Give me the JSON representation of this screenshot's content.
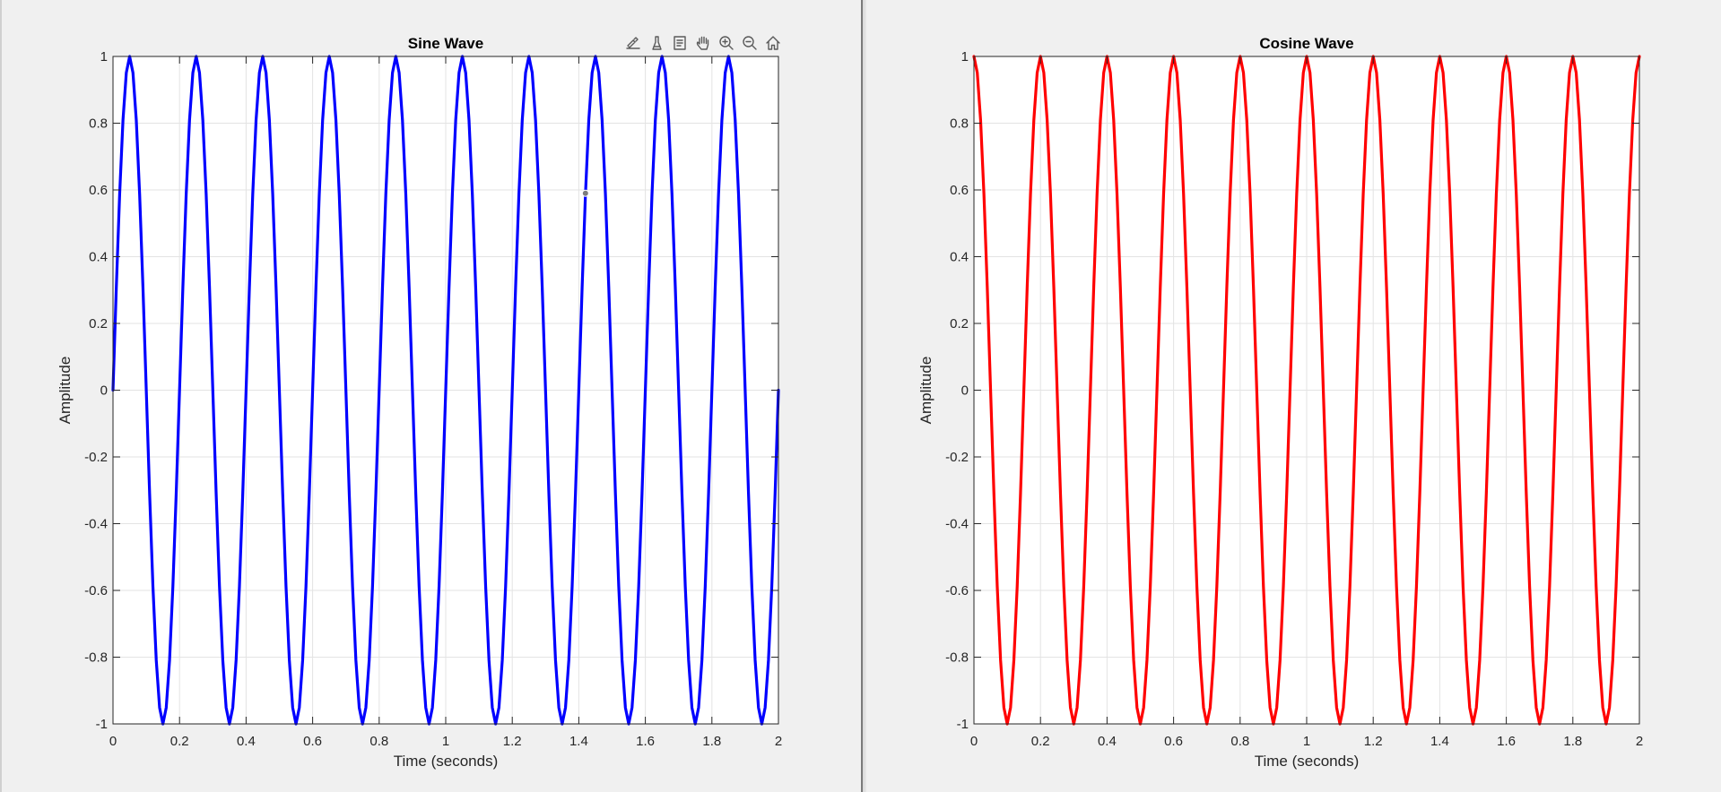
{
  "toolbar": {
    "icons": [
      "export-icon",
      "brush-icon",
      "datatip-icon",
      "pan-icon",
      "zoom-in-icon",
      "zoom-out-icon",
      "home-icon"
    ]
  },
  "chart_data": [
    {
      "type": "line",
      "title": "Sine Wave",
      "xlabel": "Time (seconds)",
      "ylabel": "Amplitude",
      "xlim": [
        0,
        2
      ],
      "ylim": [
        -1,
        1
      ],
      "grid": true,
      "x_ticks": [
        "0",
        "0.2",
        "0.4",
        "0.6",
        "0.8",
        "1",
        "1.2",
        "1.4",
        "1.6",
        "1.8",
        "2"
      ],
      "y_ticks": [
        "1",
        "0.8",
        "0.6",
        "0.4",
        "0.2",
        "0",
        "-0.2",
        "-0.4",
        "-0.6",
        "-0.8",
        "-1"
      ],
      "series": [
        {
          "function": "sin",
          "frequency_hz": 5,
          "color": "#0000ff",
          "x_start": 0,
          "x_end": 2,
          "sample_step": 0.01
        }
      ],
      "datatip": {
        "x": 1.42,
        "y": 0.59
      }
    },
    {
      "type": "line",
      "title": "Cosine Wave",
      "xlabel": "Time (seconds)",
      "ylabel": "Amplitude",
      "xlim": [
        0,
        2
      ],
      "ylim": [
        -1,
        1
      ],
      "grid": true,
      "x_ticks": [
        "0",
        "0.2",
        "0.4",
        "0.6",
        "0.8",
        "1",
        "1.2",
        "1.4",
        "1.6",
        "1.8",
        "2"
      ],
      "y_ticks": [
        "1",
        "0.8",
        "0.6",
        "0.4",
        "0.2",
        "0",
        "-0.2",
        "-0.4",
        "-0.6",
        "-0.8",
        "-1"
      ],
      "series": [
        {
          "function": "cos",
          "frequency_hz": 5,
          "color": "#ff0000",
          "x_start": 0,
          "x_end": 2,
          "sample_step": 0.01
        }
      ]
    }
  ]
}
